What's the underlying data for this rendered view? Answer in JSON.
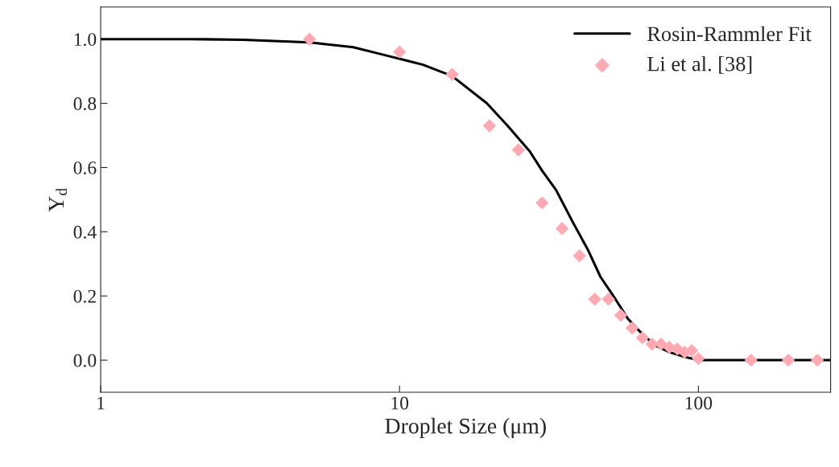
{
  "chart_data": {
    "type": "line",
    "xlabel": "Droplet Size (μm)",
    "ylabel": "Y$_{d}$",
    "log": "x",
    "xlim": [
      1,
      277
    ],
    "xticks": [
      1,
      10,
      100
    ],
    "ylim": [
      -0.1,
      1.1
    ],
    "yticks": [
      {
        "value": 0,
        "label": "0.0"
      },
      0.2,
      0.4,
      0.6,
      0.8,
      {
        "value": 1,
        "label": "1.0"
      }
    ],
    "grid": false,
    "legend": "top right",
    "series": [
      {
        "name": "Rosin-Rammler Fit",
        "color": "#000000",
        "marker": "none",
        "line_style": "solid",
        "x": [
          1,
          2,
          3,
          5,
          7,
          8.94,
          12,
          15,
          19.6,
          23,
          27.3,
          30,
          33.4,
          38,
          42.9,
          47,
          52.8,
          58,
          65.1,
          72,
          80,
          90,
          100,
          150,
          277
        ],
        "values": [
          1.0,
          1.0,
          0.998,
          0.99,
          0.975,
          0.95,
          0.92,
          0.885,
          0.8,
          0.73,
          0.65,
          0.59,
          0.53,
          0.43,
          0.34,
          0.26,
          0.19,
          0.13,
          0.08,
          0.045,
          0.025,
          0.01,
          0.0,
          0.0,
          0.0
        ]
      },
      {
        "name": "Li et al. [38]",
        "type": "scatter",
        "color": "#ffaab3",
        "marker": "diamond",
        "x": [
          5,
          10,
          15,
          20,
          25,
          30,
          35,
          40,
          45,
          50,
          55,
          60,
          65,
          70,
          75,
          80,
          85,
          90,
          95,
          100,
          150,
          200,
          250
        ],
        "values": [
          1.0,
          0.96,
          0.89,
          0.73,
          0.655,
          0.49,
          0.41,
          0.325,
          0.19,
          0.19,
          0.14,
          0.1,
          0.07,
          0.05,
          0.05,
          0.04,
          0.035,
          0.025,
          0.03,
          0.005,
          0.0,
          0.0,
          0.0
        ]
      }
    ]
  }
}
